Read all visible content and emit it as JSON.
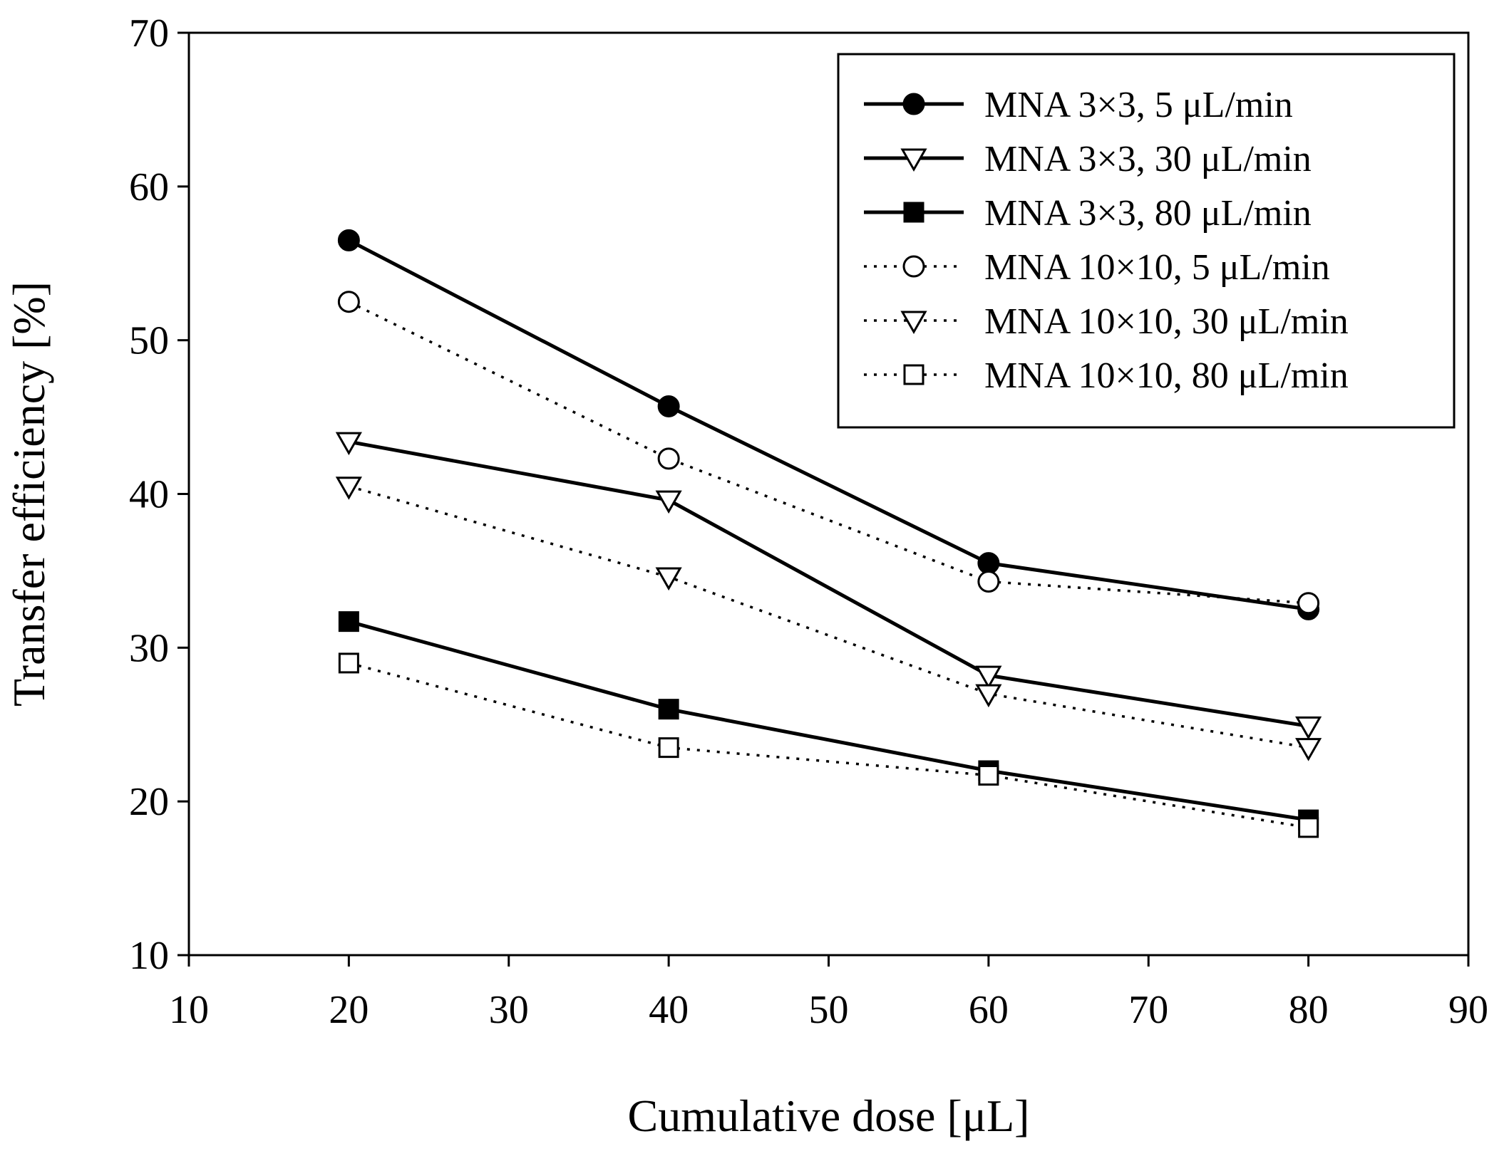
{
  "chart_data": {
    "type": "line",
    "title": "",
    "xlabel": "Cumulative dose [μL]",
    "ylabel": "Transfer efficiency [%]",
    "xlim": [
      10,
      90
    ],
    "ylim": [
      10,
      70
    ],
    "xticks": [
      10,
      20,
      30,
      40,
      50,
      60,
      70,
      80,
      90
    ],
    "yticks": [
      10,
      20,
      30,
      40,
      50,
      60,
      70
    ],
    "grid": false,
    "legend_position": "top-right",
    "x": [
      20,
      40,
      60,
      80
    ],
    "series": [
      {
        "name": "MNA 3×3, 5 μL/min",
        "values": [
          56.5,
          45.7,
          35.5,
          32.5
        ],
        "marker": "circle",
        "filled": true,
        "line": "solid"
      },
      {
        "name": "MNA 3×3, 30 μL/min",
        "values": [
          43.4,
          39.6,
          28.2,
          24.9
        ],
        "marker": "triangle-down",
        "filled": false,
        "line": "solid"
      },
      {
        "name": "MNA 3×3, 80 μL/min",
        "values": [
          31.7,
          26.0,
          22.0,
          18.8
        ],
        "marker": "square",
        "filled": true,
        "line": "solid"
      },
      {
        "name": "MNA 10×10, 5 μL/min",
        "values": [
          52.5,
          42.3,
          34.3,
          32.9
        ],
        "marker": "circle",
        "filled": false,
        "line": "dotted"
      },
      {
        "name": "MNA 10×10, 30 μL/min",
        "values": [
          40.5,
          34.6,
          27.0,
          23.5
        ],
        "marker": "triangle-down",
        "filled": false,
        "line": "dotted"
      },
      {
        "name": "MNA 10×10, 80 μL/min",
        "values": [
          29.0,
          23.5,
          21.7,
          18.3
        ],
        "marker": "square",
        "filled": false,
        "line": "dotted"
      }
    ]
  }
}
